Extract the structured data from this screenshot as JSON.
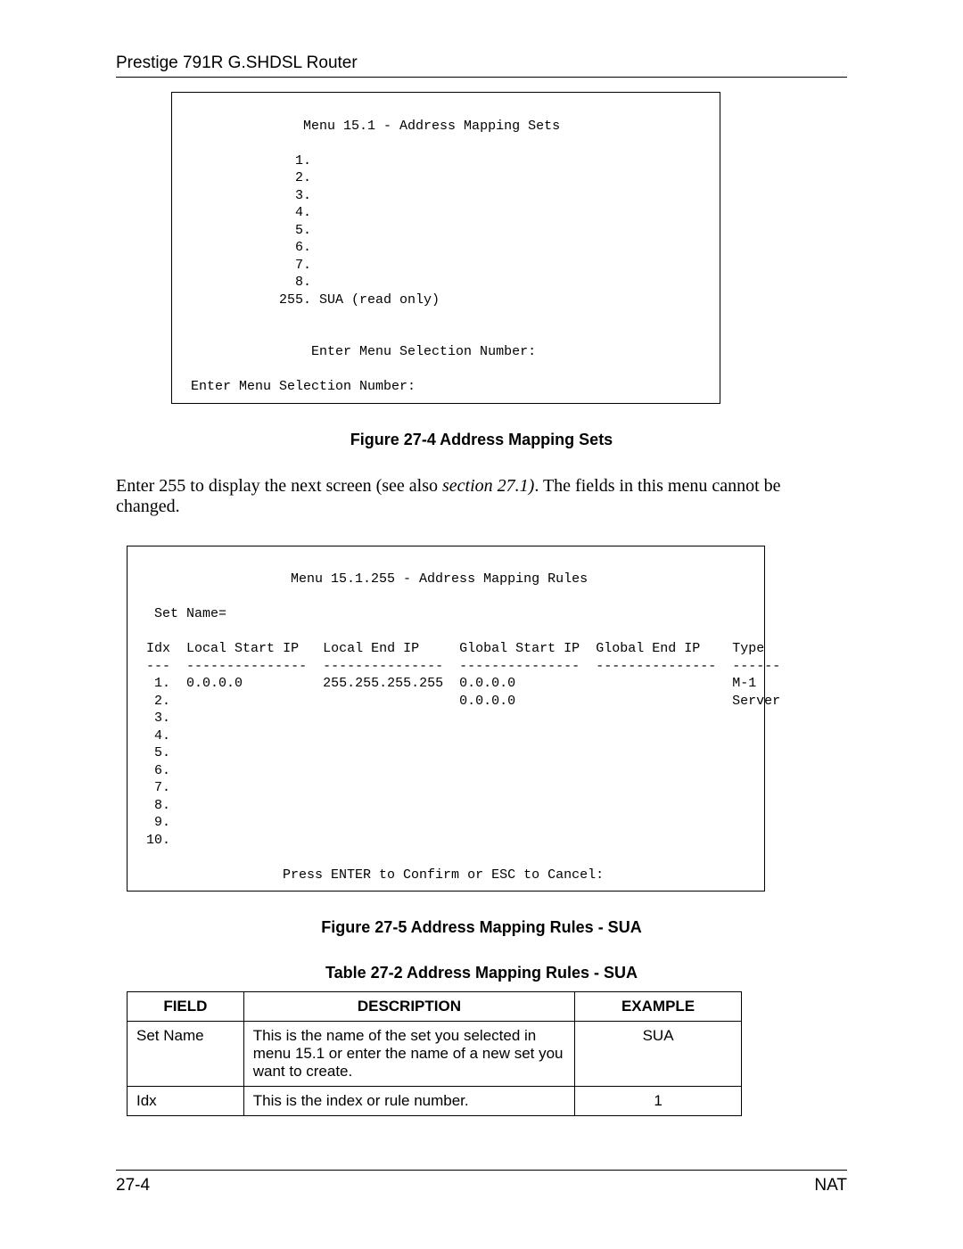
{
  "header": {
    "title": "Prestige 791R G.SHDSL Router"
  },
  "terminal1": {
    "title": "Menu 15.1 - Address Mapping Sets",
    "items": [
      "1.",
      "2.",
      "3.",
      "4.",
      "5.",
      "6.",
      "7.",
      "8."
    ],
    "readonly": "255. SUA (read only)",
    "prompt1": "Enter Menu Selection Number:",
    "prompt2": "Enter Menu Selection Number:"
  },
  "figure1_caption": "Figure 27-4 Address Mapping Sets",
  "body_text_pre": "Enter 255 to display the next screen (see also ",
  "body_text_italic": "section 27.1)",
  "body_text_post": ". The fields in this menu cannot be changed.",
  "terminal2": {
    "title": "Menu 15.1.255 - Address Mapping Rules",
    "setname": "Set Name=",
    "headers": {
      "idx": "Idx",
      "lsip": "Local Start IP",
      "leip": "Local End IP",
      "gsip": "Global Start IP",
      "geip": "Global End IP",
      "type": "Type"
    },
    "sep": {
      "idx": "---",
      "lsip": "---------------",
      "leip": "---------------",
      "gsip": "---------------",
      "geip": "---------------",
      "type": "------"
    },
    "row1": {
      "idx": " 1.",
      "lsip": "0.0.0.0",
      "leip": "255.255.255.255",
      "gsip": "0.0.0.0",
      "type": "M-1"
    },
    "row2": {
      "idx": " 2.",
      "gsip": "0.0.0.0",
      "type": "Server"
    },
    "rows_rest": [
      " 3.",
      " 4.",
      " 5.",
      " 6.",
      " 7.",
      " 8.",
      " 9.",
      "10."
    ],
    "footer": "Press ENTER to Confirm or ESC to Cancel:"
  },
  "figure2_caption": "Figure 27-5 Address Mapping Rules - SUA",
  "table_caption": "Table 27-2 Address Mapping Rules - SUA",
  "table": {
    "headers": {
      "field": "FIELD",
      "desc": "DESCRIPTION",
      "example": "EXAMPLE"
    },
    "rows": [
      {
        "field": "Set Name",
        "desc": "This is the name of the set you selected in menu 15.1 or enter the name of a new set you want to create.",
        "example": "SUA"
      },
      {
        "field": "Idx",
        "desc": "This is the index or rule number.",
        "example": "1"
      }
    ]
  },
  "footer": {
    "left": "27-4",
    "right": "NAT"
  }
}
